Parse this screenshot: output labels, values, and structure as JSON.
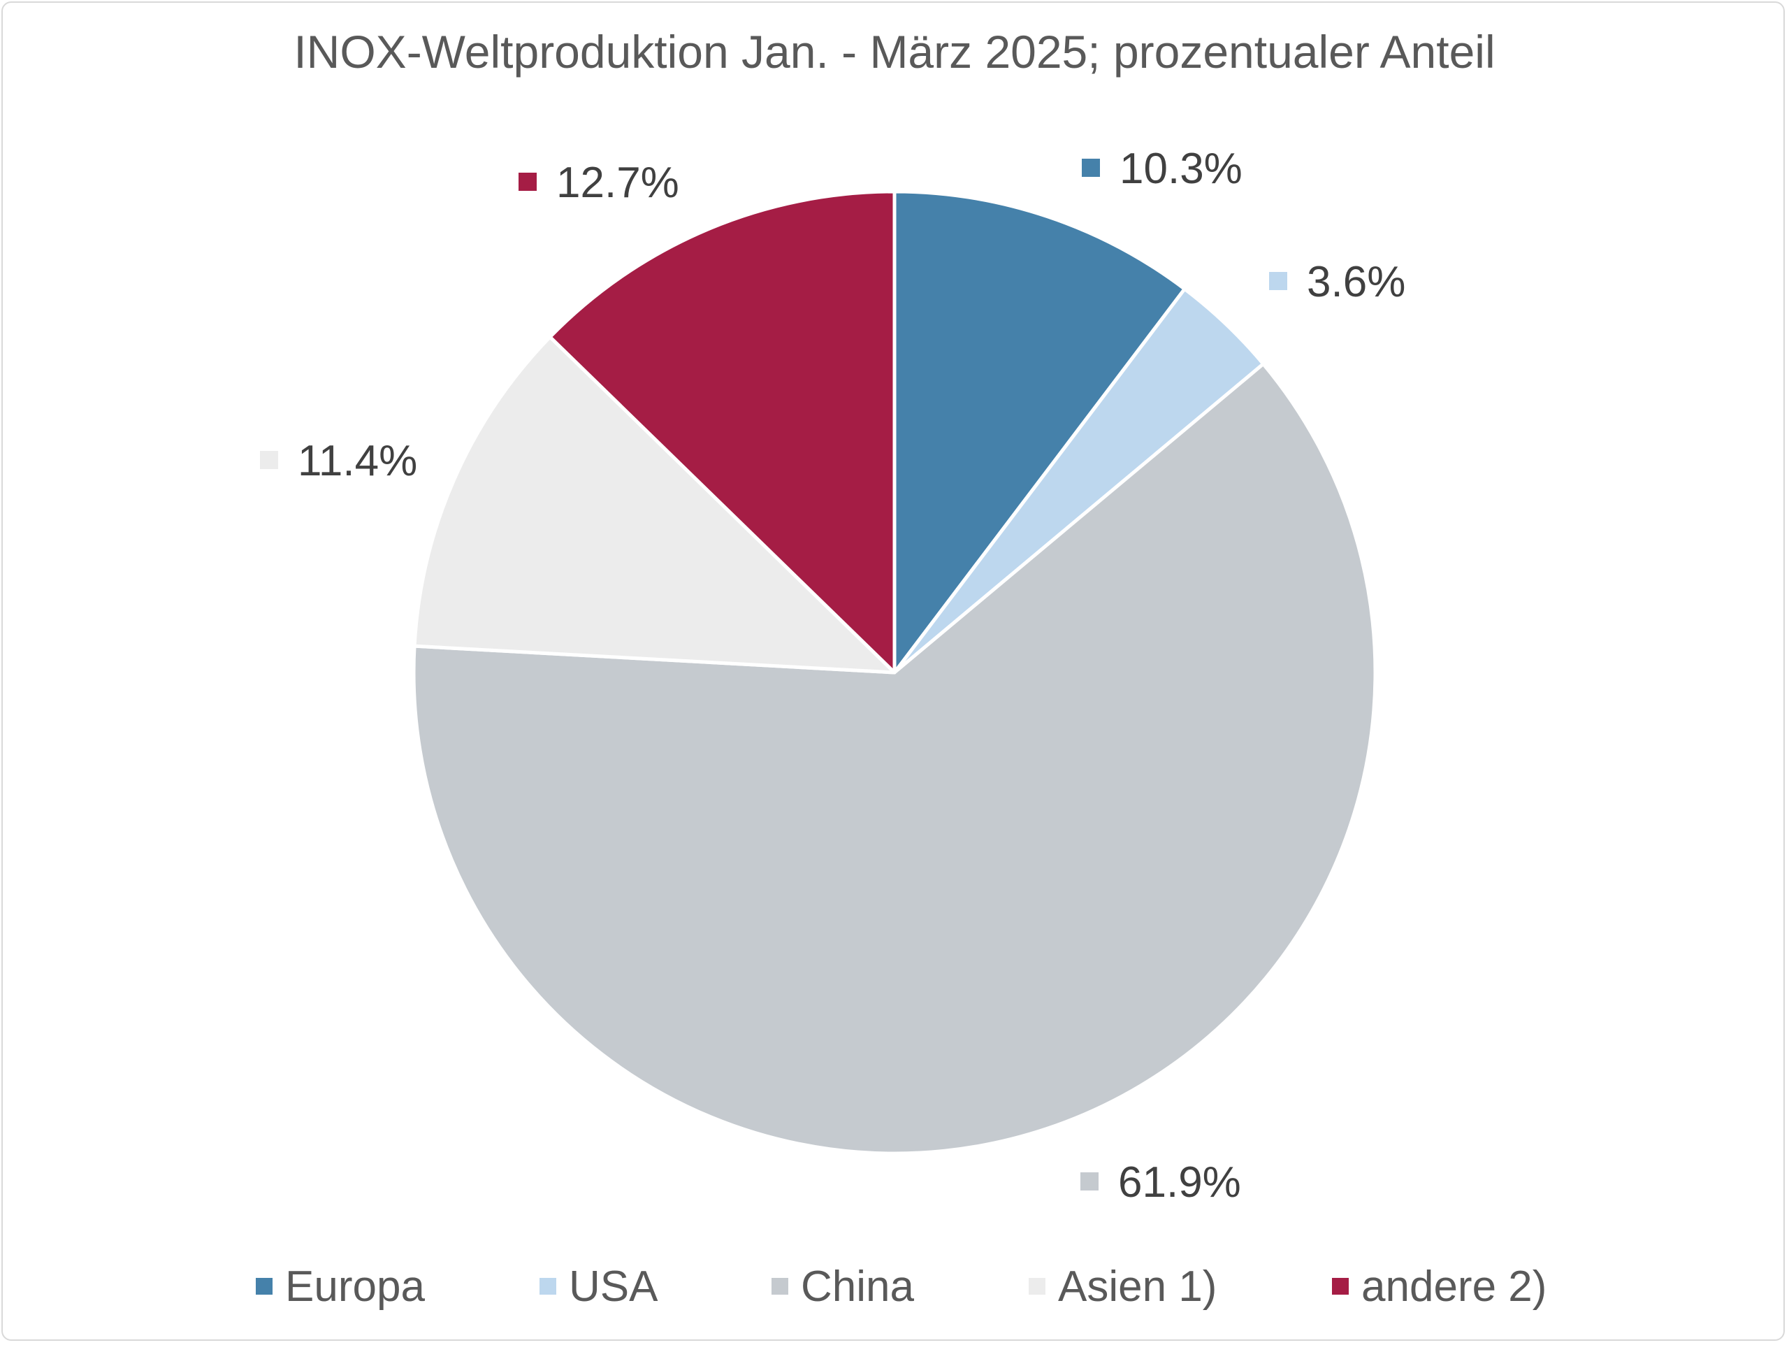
{
  "chart_data": {
    "type": "pie",
    "title": "INOX-Weltproduktion Jan. - März 2025; prozentualer Anteil",
    "categories": [
      "Europa",
      "USA",
      "China",
      "Asien 1)",
      "andere 2)"
    ],
    "values": [
      10.3,
      3.6,
      61.9,
      11.4,
      12.7
    ],
    "value_labels": [
      "10.3%",
      "3.6%",
      "61.9%",
      "11.4%",
      "12.7%"
    ],
    "unit": "%",
    "colors": [
      "#4581aa",
      "#bdd7ee",
      "#c5cacf",
      "#ececec",
      "#a51d45"
    ],
    "start_angle": "12 o'clock",
    "direction": "clockwise",
    "legend_position": "bottom",
    "data_labels": "outside, with color marker"
  }
}
